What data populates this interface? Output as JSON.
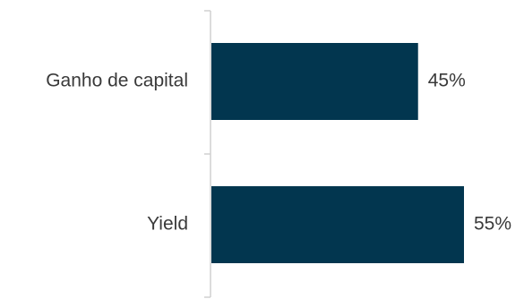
{
  "chart_data": {
    "type": "bar",
    "orientation": "horizontal",
    "categories": [
      "Ganho de capital",
      "Yield"
    ],
    "values": [
      45,
      55
    ],
    "value_labels": [
      "45%",
      "55%"
    ],
    "bar_color": "#02364F",
    "axis_color": "#d0d0d0",
    "title": "",
    "xlabel": "",
    "ylabel": "",
    "xlim": [
      0,
      62
    ]
  }
}
